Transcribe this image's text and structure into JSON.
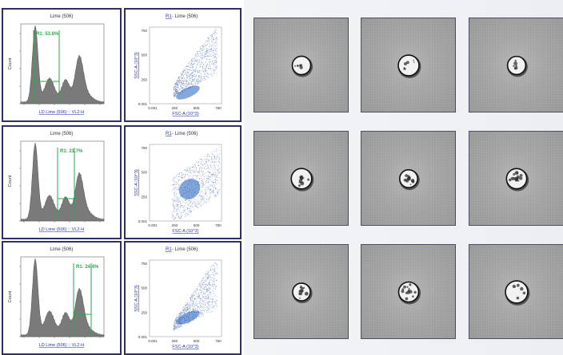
{
  "histograms": [
    {
      "title": "Lime (506)",
      "ylabel": "Count",
      "xlabel": "LD Lime (506) :: VL2-H",
      "gate": "R1: 53.8%"
    },
    {
      "title": "Lime (506)",
      "ylabel": "Count",
      "xlabel": "LD Lime (506) :: VL2-H",
      "gate": "R1: 21.7%"
    },
    {
      "title": "Lime (506)",
      "ylabel": "Count",
      "xlabel": "LD Lime (506) :: VL2-H",
      "gate": "R1: 24.4%"
    }
  ],
  "scatters": [
    {
      "title_link": "R1",
      "title_rest": " - Lime (506)",
      "xlabel": "FSC-A (10^3)",
      "ylabel": "SSC-A (10^3)",
      "yticks": [
        "750",
        "500",
        "250",
        "0.001"
      ],
      "xticks": [
        "0.001",
        "250",
        "500",
        "750"
      ]
    },
    {
      "title_link": "R1",
      "title_rest": " - Lime (506)",
      "xlabel": "FSC-A (10^3)",
      "ylabel": "SSC-A (10^3)",
      "yticks": [
        "750",
        "500",
        "250",
        "0.001"
      ],
      "xticks": [
        "0.001",
        "250",
        "500",
        "750"
      ]
    },
    {
      "title_link": "R1",
      "title_rest": " - Lime (506)",
      "xlabel": "FSC-A (10^3)",
      "ylabel": "SSC-A (10^3)",
      "yticks": [
        "750",
        "500",
        "250",
        "0.001"
      ],
      "xticks": [
        "0.001",
        "250",
        "500",
        "750"
      ]
    }
  ],
  "colors": {
    "frame": "#2e2f66",
    "gate": "#2aa84a",
    "histogram": "#7a7a7a",
    "dots": "#5a78b4",
    "dense": "#1f5fbf",
    "link": "#2a35b0"
  },
  "gallery": {
    "rows": 3,
    "cols": 3,
    "tiles": [
      "smooth-cell",
      "smooth-cell",
      "smooth-cell",
      "granular-cell",
      "granular-cell",
      "granular-cell",
      "granular-cell",
      "granular-cell",
      "smooth-cell"
    ]
  }
}
